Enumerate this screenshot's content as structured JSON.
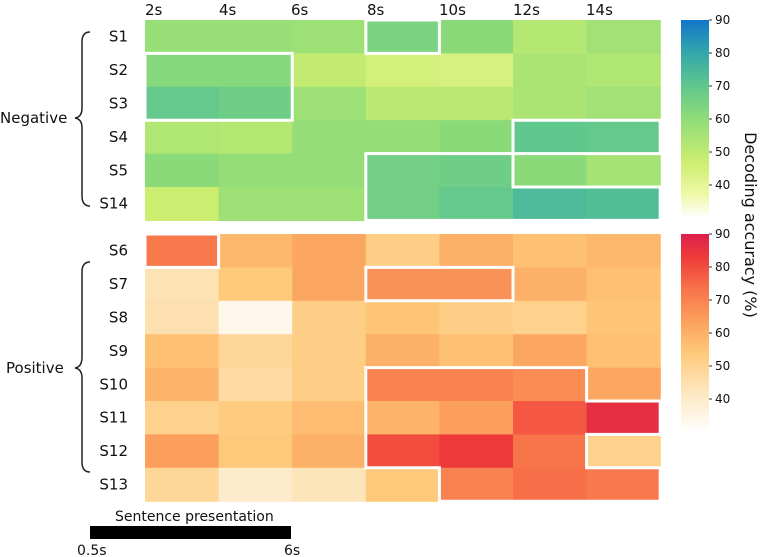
{
  "chart_data": {
    "type": "heatmap",
    "x_ticks": [
      "2s",
      "4s",
      "6s",
      "8s",
      "10s",
      "12s",
      "14s"
    ],
    "colorbar_label": "Decoding accuracy (%)",
    "colorbar_ticks": [
      "90",
      "80",
      "70",
      "60",
      "50",
      "40"
    ],
    "scale_range": [
      30,
      90
    ],
    "scale_bar": {
      "label": "Sentence presentation",
      "start_label": "0.5s",
      "end_label": "6s"
    },
    "panels": [
      {
        "name": "negative",
        "group_label": "Negative",
        "colormap": "green-blue",
        "rows": [
          "S1",
          "S2",
          "S3",
          "S4",
          "S5",
          "S14"
        ],
        "values": [
          [
            58,
            58,
            57,
            64,
            61,
            52,
            56
          ],
          [
            62,
            62,
            49,
            45,
            44,
            54,
            53
          ],
          [
            69,
            67,
            57,
            51,
            51,
            54,
            56
          ],
          [
            53,
            52,
            59,
            59,
            61,
            70,
            69
          ],
          [
            61,
            59,
            59,
            66,
            67,
            61,
            55
          ],
          [
            47,
            57,
            57,
            66,
            69,
            74,
            73
          ]
        ],
        "significant": [
          [
            0,
            0,
            0,
            1,
            0,
            0,
            0
          ],
          [
            1,
            1,
            0,
            0,
            0,
            0,
            0
          ],
          [
            1,
            1,
            0,
            0,
            0,
            0,
            0
          ],
          [
            0,
            0,
            0,
            0,
            0,
            1,
            1
          ],
          [
            0,
            0,
            0,
            1,
            1,
            0,
            0
          ],
          [
            0,
            0,
            0,
            1,
            1,
            1,
            1
          ]
        ]
      },
      {
        "name": "positive",
        "group_label": "Positive",
        "colormap": "white-orange-red",
        "rows": [
          "S6",
          "S7",
          "S8",
          "S9",
          "S10",
          "S11",
          "S12",
          "S13"
        ],
        "values": [
          [
            72,
            58,
            62,
            52,
            60,
            56,
            58
          ],
          [
            44,
            54,
            62,
            67,
            67,
            60,
            56
          ],
          [
            45,
            34,
            52,
            55,
            52,
            51,
            55
          ],
          [
            56,
            49,
            52,
            60,
            56,
            62,
            56
          ],
          [
            59,
            47,
            52,
            70,
            70,
            68,
            62
          ],
          [
            51,
            53,
            57,
            59,
            64,
            78,
            86
          ],
          [
            64,
            54,
            60,
            80,
            83,
            73,
            51
          ],
          [
            49,
            40,
            43,
            54,
            70,
            74,
            72
          ]
        ],
        "significant": [
          [
            1,
            0,
            0,
            0,
            0,
            0,
            0
          ],
          [
            0,
            0,
            0,
            1,
            1,
            0,
            0
          ],
          [
            0,
            0,
            0,
            0,
            0,
            0,
            0
          ],
          [
            0,
            0,
            0,
            0,
            0,
            0,
            0
          ],
          [
            0,
            0,
            0,
            1,
            1,
            1,
            0
          ],
          [
            0,
            0,
            0,
            1,
            1,
            1,
            1
          ],
          [
            0,
            0,
            0,
            1,
            1,
            1,
            0
          ],
          [
            0,
            0,
            0,
            0,
            1,
            1,
            1
          ]
        ]
      }
    ]
  }
}
